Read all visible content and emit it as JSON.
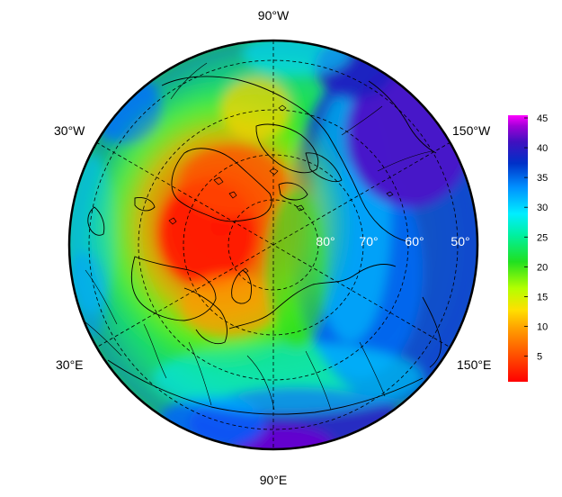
{
  "map": {
    "projection": "north-polar-stereographic",
    "meridian_labels": {
      "top": "90°W",
      "upper_left": "30°W",
      "upper_right": "150°W",
      "lower_left": "30°E",
      "lower_right": "150°E",
      "bottom": "90°E"
    },
    "latitude_labels": [
      "80°",
      "70°",
      "60°",
      "50°"
    ],
    "graticule_style": "dashed",
    "coastlines": true
  },
  "colorbar": {
    "min": 1,
    "max": 45,
    "ticks": [
      "5",
      "10",
      "15",
      "20",
      "25",
      "30",
      "35",
      "40",
      "45"
    ],
    "colors": [
      "#ff0000",
      "#ff4a00",
      "#ff8c00",
      "#ffd400",
      "#c8ff00",
      "#28e628",
      "#00f0b0",
      "#00e8ff",
      "#0096ff",
      "#0033cc",
      "#3a10c0",
      "#8a00d0",
      "#e800e8"
    ]
  },
  "field": {
    "description_hidden": "",
    "hot_center_degrees": [
      145,
      0.45
    ],
    "cold_center_degrees": [
      345,
      0.7
    ]
  }
}
